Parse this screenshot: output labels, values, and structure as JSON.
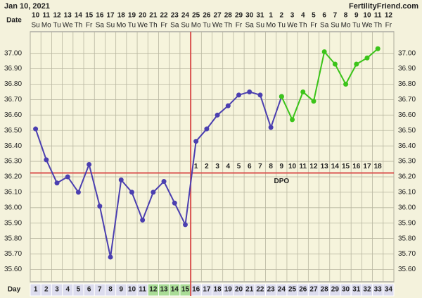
{
  "chart_data": {
    "type": "line",
    "title": "Jan 10, 2021",
    "brand": "FertilityFriend.com",
    "date_label": "Date",
    "day_label": "Day",
    "dates": [
      "10",
      "11",
      "12",
      "13",
      "14",
      "15",
      "16",
      "17",
      "18",
      "19",
      "20",
      "21",
      "22",
      "23",
      "24",
      "25",
      "26",
      "27",
      "28",
      "29",
      "30",
      "31",
      "1",
      "2",
      "3",
      "4",
      "5",
      "6",
      "7",
      "8",
      "9",
      "10",
      "11",
      "12"
    ],
    "weekdays": [
      "Su",
      "Mo",
      "Tu",
      "We",
      "Th",
      "Fr",
      "Sa",
      "Su",
      "Mo",
      "Tu",
      "We",
      "Th",
      "Fr",
      "Sa",
      "Su",
      "Mo",
      "Tu",
      "We",
      "Th",
      "Fr",
      "Sa",
      "Su",
      "Mo",
      "Tu",
      "We",
      "Th",
      "Fr",
      "Sa",
      "Su",
      "Mo",
      "Tu",
      "We",
      "Th",
      "Fr"
    ],
    "categories": [
      1,
      2,
      3,
      4,
      5,
      6,
      7,
      8,
      9,
      10,
      11,
      12,
      13,
      14,
      15,
      16,
      17,
      18,
      19,
      20,
      21,
      22,
      23,
      24,
      25,
      26,
      27,
      28,
      29,
      30,
      31,
      32,
      33,
      34
    ],
    "series": [
      {
        "color": "#4b3fb0",
        "values": [
          36.51,
          36.31,
          36.16,
          36.2,
          36.1,
          36.28,
          36.01,
          35.68,
          36.18,
          36.1,
          35.92,
          36.1,
          36.17,
          36.03,
          35.89,
          36.43,
          36.51,
          36.6,
          36.66,
          36.73,
          36.75,
          36.73,
          36.52,
          36.72,
          null,
          null,
          null,
          null,
          null,
          null,
          null,
          null,
          null,
          null
        ]
      },
      {
        "color": "#3cc41a",
        "values": [
          null,
          null,
          null,
          null,
          null,
          null,
          null,
          null,
          null,
          null,
          null,
          null,
          null,
          null,
          null,
          null,
          null,
          null,
          null,
          null,
          null,
          null,
          null,
          36.72,
          36.57,
          36.75,
          36.69,
          37.01,
          36.93,
          36.8,
          36.93,
          36.97,
          37.03,
          null
        ]
      }
    ],
    "ylim": [
      35.52,
      37.14
    ],
    "yticks": [
      {
        "value": 35.6,
        "label": "35.60"
      },
      {
        "value": 35.7,
        "label": "35.70"
      },
      {
        "value": 35.8,
        "label": "35.80"
      },
      {
        "value": 35.9,
        "label": "35.90"
      },
      {
        "value": 36.0,
        "label": "36.00"
      },
      {
        "value": 36.1,
        "label": "36.10"
      },
      {
        "value": 36.2,
        "label": "36.20"
      },
      {
        "value": 36.3,
        "label": "36.30"
      },
      {
        "value": 36.4,
        "label": "36.40"
      },
      {
        "value": 36.5,
        "label": "36.50"
      },
      {
        "value": 36.6,
        "label": "36.60"
      },
      {
        "value": 36.7,
        "label": "36.70"
      },
      {
        "value": 36.8,
        "label": "36.80"
      },
      {
        "value": 36.9,
        "label": "36.90"
      },
      {
        "value": 37.0,
        "label": "37.00"
      }
    ],
    "coverline": 36.225,
    "ovulation_day": 15,
    "coverline_color": "#d9534f",
    "dpo_label": "DPO",
    "dpo": [
      1,
      2,
      3,
      4,
      5,
      6,
      7,
      8,
      9,
      10,
      11,
      12,
      13,
      14,
      15,
      16,
      17,
      18
    ],
    "fertile_days": [
      12,
      13,
      14,
      15
    ],
    "grid": true
  }
}
